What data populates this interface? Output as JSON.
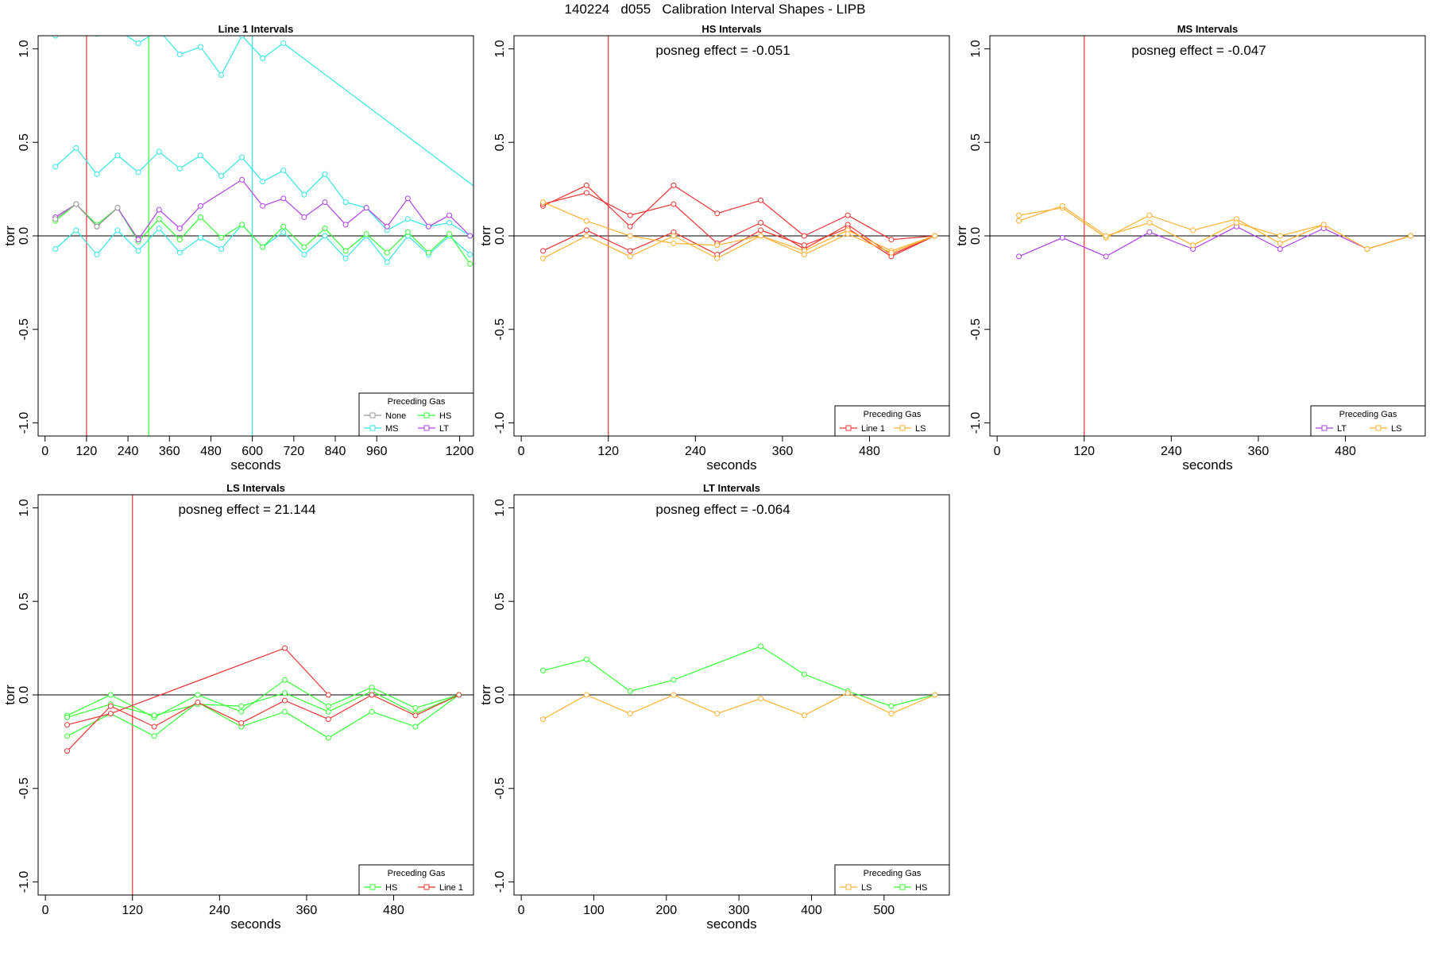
{
  "page_title": "140224   d055   Calibration Interval Shapes - LIPB",
  "colors": {
    "None": "#999999",
    "MS": "#33e6e6",
    "HS": "#33ff33",
    "LT": "#b040e8",
    "Line 1": "#ee3333",
    "LS": "#ffb030",
    "zero_line": "#000000"
  },
  "chart_data": [
    {
      "type": "line",
      "title": "Line 1 Intervals",
      "xlabel": "seconds",
      "ylabel": "torr",
      "xlim": [
        -20,
        1240
      ],
      "ylim": [
        -1.07,
        1.07
      ],
      "xticks": [
        0,
        120,
        240,
        360,
        480,
        600,
        720,
        840,
        960,
        1200
      ],
      "yticks": [
        -1.0,
        -0.5,
        0.0,
        0.5,
        1.0
      ],
      "ytick_labels": [
        "-1.0",
        "-0.5",
        "0.0",
        "0.5",
        "1.0"
      ],
      "annotation": "",
      "vlines": [
        {
          "x": 120,
          "color": "Line 1"
        },
        {
          "x": 300,
          "color": "HS"
        },
        {
          "x": 600,
          "color": "MS"
        }
      ],
      "legend": {
        "title": "Preceding Gas",
        "position": "bottom-right",
        "columns": 2,
        "entries": [
          "None",
          "HS",
          "MS",
          "LT"
        ]
      },
      "series": [
        {
          "name": "MS",
          "x": [
            30,
            90,
            150,
            210,
            270,
            330,
            390,
            450,
            510,
            570,
            630,
            690,
            1260
          ],
          "y": [
            1.07,
            1.12,
            1.08,
            1.1,
            1.03,
            1.1,
            0.97,
            1.01,
            0.86,
            1.07,
            0.95,
            1.03,
            0.24
          ]
        },
        {
          "name": "MS",
          "x": [
            30,
            90,
            150,
            210,
            270,
            330,
            390,
            450,
            510,
            570,
            630,
            690,
            750,
            810,
            870,
            930,
            990,
            1050,
            1110,
            1170,
            1230
          ],
          "y": [
            0.37,
            0.47,
            0.33,
            0.43,
            0.34,
            0.45,
            0.36,
            0.43,
            0.32,
            0.42,
            0.29,
            0.35,
            0.22,
            0.33,
            0.18,
            0.15,
            0.03,
            0.09,
            0.05,
            0.07,
            0.0
          ]
        },
        {
          "name": "MS",
          "x": [
            30,
            90,
            150,
            210,
            270,
            330,
            390,
            450,
            510,
            570,
            630,
            690,
            750,
            810,
            870,
            930,
            990,
            1050,
            1110,
            1170,
            1230
          ],
          "y": [
            -0.07,
            0.03,
            -0.1,
            0.03,
            -0.08,
            0.04,
            -0.09,
            -0.01,
            -0.07,
            0.06,
            -0.06,
            0.02,
            -0.1,
            0.0,
            -0.12,
            0.0,
            -0.14,
            0.0,
            -0.1,
            0.0,
            -0.1
          ]
        },
        {
          "name": "HS",
          "x": [
            30,
            90,
            150,
            210,
            270,
            330,
            390,
            450,
            510,
            570,
            630,
            690,
            750,
            810,
            870,
            930,
            990,
            1050,
            1110,
            1170,
            1230
          ],
          "y": [
            0.08,
            0.17,
            0.06,
            0.15,
            -0.03,
            0.09,
            -0.02,
            0.1,
            -0.01,
            0.06,
            -0.06,
            0.05,
            -0.06,
            0.04,
            -0.08,
            0.01,
            -0.09,
            0.02,
            -0.09,
            0.01,
            -0.15
          ]
        },
        {
          "name": "LT",
          "x": [
            30,
            90,
            150,
            210,
            270,
            330,
            390,
            450,
            570,
            630,
            690,
            750,
            810,
            870,
            930,
            990,
            1050,
            1110,
            1170,
            1230
          ],
          "y": [
            0.1,
            0.17,
            0.05,
            0.15,
            -0.02,
            0.14,
            0.04,
            0.16,
            0.3,
            0.16,
            0.2,
            0.1,
            0.18,
            0.06,
            0.15,
            0.05,
            0.2,
            0.05,
            0.11,
            0.0
          ]
        },
        {
          "name": "None",
          "x": [
            30,
            90,
            150,
            210
          ],
          "y": [
            0.09,
            0.17,
            0.05,
            0.15
          ]
        }
      ]
    },
    {
      "type": "line",
      "title": "HS Intervals",
      "xlabel": "seconds",
      "ylabel": "torr",
      "xlim": [
        -10,
        590
      ],
      "ylim": [
        -1.07,
        1.07
      ],
      "xticks": [
        0,
        120,
        240,
        360,
        480
      ],
      "yticks": [
        -1.0,
        -0.5,
        0.0,
        0.5,
        1.0
      ],
      "ytick_labels": [
        "-1.0",
        "-0.5",
        "0.0",
        "0.5",
        "1.0"
      ],
      "annotation": "posneg effect = -0.051",
      "vlines": [
        {
          "x": 120,
          "color": "Line 1"
        }
      ],
      "legend": {
        "title": "Preceding Gas",
        "position": "bottom-right",
        "columns": 2,
        "entries": [
          "Line 1",
          "LS"
        ]
      },
      "series": [
        {
          "name": "Line 1",
          "x": [
            30,
            90,
            150,
            210,
            270,
            330,
            390,
            450,
            510,
            570
          ],
          "y": [
            0.16,
            0.27,
            0.05,
            0.27,
            0.12,
            0.19,
            0.0,
            0.11,
            -0.02,
            0.0
          ]
        },
        {
          "name": "Line 1",
          "x": [
            30,
            90,
            150,
            210,
            270,
            330,
            390,
            450,
            510,
            570
          ],
          "y": [
            0.17,
            0.23,
            0.11,
            0.17,
            -0.04,
            0.07,
            -0.07,
            0.06,
            -0.1,
            0.0
          ]
        },
        {
          "name": "Line 1",
          "x": [
            30,
            90,
            150,
            210,
            270,
            330,
            390,
            450,
            510,
            570
          ],
          "y": [
            -0.08,
            0.03,
            -0.08,
            0.02,
            -0.1,
            0.03,
            -0.05,
            0.04,
            -0.11,
            0.0
          ]
        },
        {
          "name": "LS",
          "x": [
            30,
            90,
            150,
            210,
            270,
            330,
            390,
            450,
            510,
            570
          ],
          "y": [
            0.18,
            0.08,
            0.0,
            -0.04,
            -0.05,
            0.0,
            -0.08,
            0.03,
            -0.08,
            0.0
          ]
        },
        {
          "name": "LS",
          "x": [
            30,
            90,
            150,
            210,
            270,
            330,
            390,
            450,
            510,
            570
          ],
          "y": [
            -0.12,
            0.0,
            -0.11,
            0.0,
            -0.12,
            0.0,
            -0.1,
            0.01,
            -0.09,
            0.0
          ]
        }
      ]
    },
    {
      "type": "line",
      "title": "MS Intervals",
      "xlabel": "seconds",
      "ylabel": "torr",
      "xlim": [
        -10,
        590
      ],
      "ylim": [
        -1.07,
        1.07
      ],
      "xticks": [
        0,
        120,
        240,
        360,
        480
      ],
      "yticks": [
        -1.0,
        -0.5,
        0.0,
        0.5,
        1.0
      ],
      "ytick_labels": [
        "-1.0",
        "-0.5",
        "0.0",
        "0.5",
        "1.0"
      ],
      "annotation": "posneg effect = -0.047",
      "vlines": [
        {
          "x": 120,
          "color": "Line 1"
        }
      ],
      "legend": {
        "title": "Preceding Gas",
        "position": "bottom-right",
        "columns": 2,
        "entries": [
          "LT",
          "LS"
        ]
      },
      "series": [
        {
          "name": "LT",
          "x": [
            30,
            90,
            150,
            210,
            270,
            330,
            390,
            450,
            510,
            570
          ],
          "y": [
            -0.11,
            -0.01,
            -0.11,
            0.02,
            -0.07,
            0.05,
            -0.07,
            0.04,
            -0.07,
            0.0
          ]
        },
        {
          "name": "LS",
          "x": [
            30,
            90,
            150,
            210,
            270,
            330,
            390,
            450,
            510,
            570
          ],
          "y": [
            0.11,
            0.15,
            -0.01,
            0.11,
            0.03,
            0.09,
            -0.04,
            0.06,
            -0.07,
            0.0
          ]
        },
        {
          "name": "LS",
          "x": [
            30,
            90,
            150,
            210,
            270,
            330,
            390,
            450,
            510,
            570
          ],
          "y": [
            0.08,
            0.16,
            0.0,
            0.07,
            -0.05,
            0.07,
            0.0,
            0.06,
            -0.07,
            0.0
          ]
        }
      ]
    },
    {
      "type": "line",
      "title": "LS Intervals",
      "xlabel": "seconds",
      "ylabel": "torr",
      "xlim": [
        -10,
        590
      ],
      "ylim": [
        -1.07,
        1.07
      ],
      "xticks": [
        0,
        120,
        240,
        360,
        480
      ],
      "yticks": [
        -1.0,
        -0.5,
        0.0,
        0.5,
        1.0
      ],
      "ytick_labels": [
        "-1.0",
        "-0.5",
        "0.0",
        "0.5",
        "1.0"
      ],
      "annotation": "posneg effect = 21.144",
      "vlines": [
        {
          "x": 120,
          "color": "Line 1"
        }
      ],
      "legend": {
        "title": "Preceding Gas",
        "position": "bottom-right",
        "columns": 2,
        "entries": [
          "HS",
          "Line 1"
        ]
      },
      "series": [
        {
          "name": "HS",
          "x": [
            30,
            90,
            150,
            210,
            270,
            330,
            390,
            450,
            510,
            570
          ],
          "y": [
            -0.11,
            0.0,
            -0.12,
            0.0,
            -0.09,
            0.08,
            -0.06,
            0.04,
            -0.07,
            0.0
          ]
        },
        {
          "name": "HS",
          "x": [
            30,
            90,
            150,
            210,
            270,
            330,
            390,
            450,
            510,
            570
          ],
          "y": [
            -0.12,
            -0.05,
            -0.11,
            -0.05,
            -0.06,
            0.01,
            -0.09,
            0.02,
            -0.1,
            0.0
          ]
        },
        {
          "name": "HS",
          "x": [
            30,
            90,
            150,
            210,
            270,
            330,
            390,
            450,
            510,
            570
          ],
          "y": [
            -0.22,
            -0.1,
            -0.22,
            -0.04,
            -0.17,
            -0.09,
            -0.23,
            -0.09,
            -0.17,
            0.0
          ]
        },
        {
          "name": "Line 1",
          "x": [
            30,
            90,
            150,
            210,
            270,
            330,
            390,
            450,
            510,
            570
          ],
          "y": [
            -0.3,
            -0.06,
            -0.17,
            -0.04,
            -0.15,
            -0.03,
            -0.13,
            0.0,
            -0.11,
            0.0
          ]
        },
        {
          "name": "Line 1",
          "x": [
            30,
            90,
            330,
            390
          ],
          "y": [
            -0.16,
            -0.1,
            0.25,
            0.0
          ]
        }
      ]
    },
    {
      "type": "line",
      "title": "LT Intervals",
      "xlabel": "seconds",
      "ylabel": "torr",
      "xlim": [
        -10,
        590
      ],
      "ylim": [
        -1.07,
        1.07
      ],
      "xticks": [
        0,
        100,
        200,
        300,
        400,
        500
      ],
      "yticks": [
        -1.0,
        -0.5,
        0.0,
        0.5,
        1.0
      ],
      "ytick_labels": [
        "-1.0",
        "-0.5",
        "0.0",
        "0.5",
        "1.0"
      ],
      "annotation": "posneg effect = -0.064",
      "vlines": [],
      "legend": {
        "title": "Preceding Gas",
        "position": "bottom-right",
        "columns": 2,
        "entries": [
          "LS",
          "HS"
        ]
      },
      "series": [
        {
          "name": "HS",
          "x": [
            30,
            90,
            150,
            210,
            330,
            390,
            450,
            510,
            570
          ],
          "y": [
            0.13,
            0.19,
            0.02,
            0.08,
            0.26,
            0.11,
            0.02,
            -0.06,
            0.0
          ]
        },
        {
          "name": "LS",
          "x": [
            30,
            90,
            150,
            210,
            270,
            330,
            390,
            450,
            510,
            570
          ],
          "y": [
            -0.13,
            0.0,
            -0.1,
            0.0,
            -0.1,
            -0.02,
            -0.11,
            0.01,
            -0.1,
            0.0
          ]
        }
      ]
    }
  ]
}
